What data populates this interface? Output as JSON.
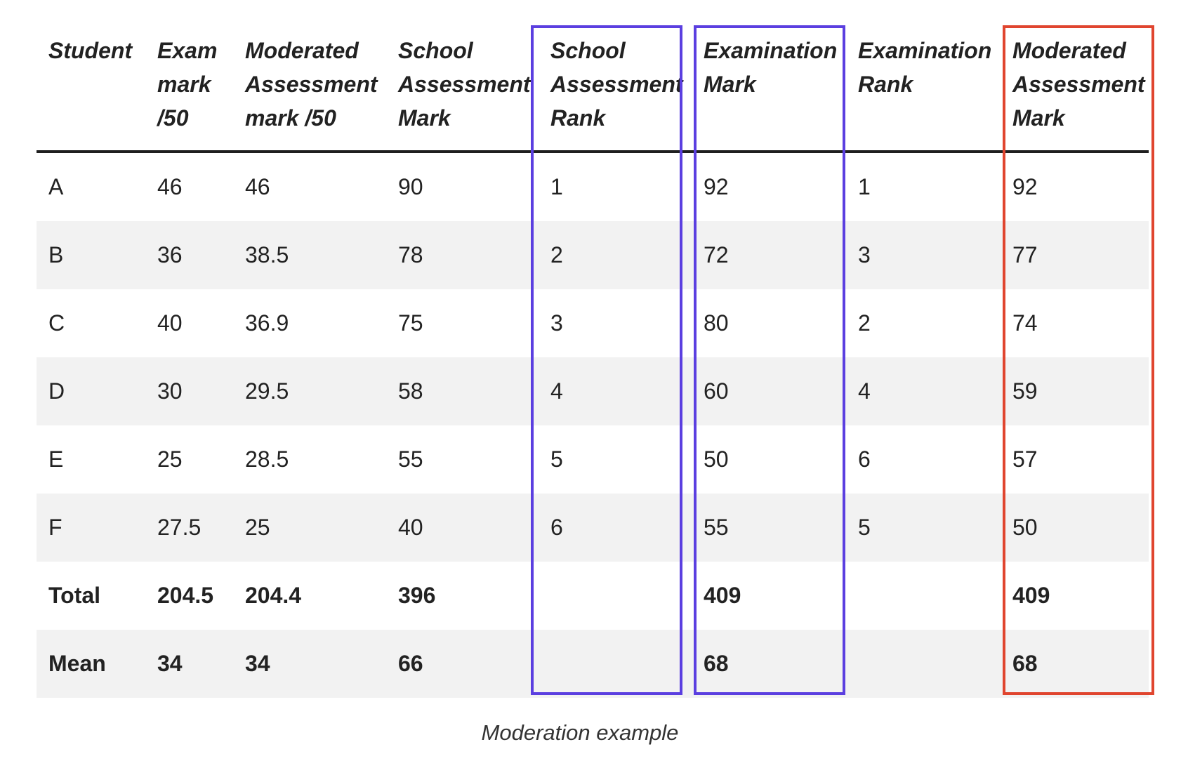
{
  "headers": [
    "Student",
    "Exam mark /50",
    "Moderated Assessment mark /50",
    "School Assessment Mark",
    "School Assessment Rank",
    "Examination Mark",
    "Examination Rank",
    "Moderated Assessment Mark"
  ],
  "rows": [
    [
      "A",
      "46",
      "46",
      "90",
      "1",
      "92",
      "1",
      "92"
    ],
    [
      "B",
      "36",
      "38.5",
      "78",
      "2",
      "72",
      "3",
      "77"
    ],
    [
      "C",
      "40",
      "36.9",
      "75",
      "3",
      "80",
      "2",
      "74"
    ],
    [
      "D",
      "30",
      "29.5",
      "58",
      "4",
      "60",
      "4",
      "59"
    ],
    [
      "E",
      "25",
      "28.5",
      "55",
      "5",
      "50",
      "6",
      "57"
    ],
    [
      "F",
      "27.5",
      "25",
      "40",
      "6",
      "55",
      "5",
      "50"
    ]
  ],
  "total": [
    "Total",
    "204.5",
    "204.4",
    "396",
    "",
    "409",
    "",
    "409"
  ],
  "mean": [
    "Mean",
    "34",
    "34",
    "66",
    "",
    "68",
    "",
    "68"
  ],
  "caption": "Moderation example",
  "colors": {
    "highlight_blue": "#5b3fe0",
    "highlight_red": "#e0452f",
    "row_shade": "#f2f2f2",
    "rule": "#1f1f1f"
  }
}
